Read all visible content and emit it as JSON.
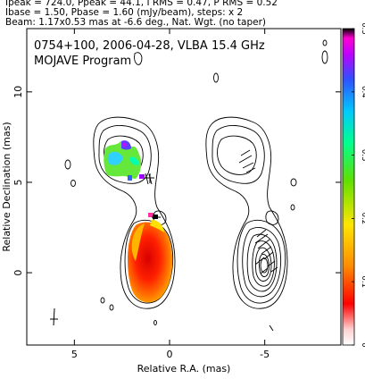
{
  "header": {
    "line1": "Ipeak = 724.0, Ppeak = 44.1, I RMS = 0.47, P RMS = 0.52",
    "line2": "Ibase = 1.50, Pbase = 1.60 (mJy/beam), steps: x 2",
    "line3": "Beam: 1.17x0.53 mas at -6.6 deg., Nat. Wgt. (no taper)"
  },
  "chart_data": {
    "type": "heatmap",
    "title": "0754+100, 2006-04-28, VLBA 15.4 GHz",
    "subtitle": "MOJAVE Program",
    "xlabel": "Relative R.A. (mas)",
    "ylabel": "Relative Declination (mas)",
    "xlim": [
      7.5,
      -9.0
    ],
    "ylim": [
      -4.0,
      13.5
    ],
    "x_ticks": [
      5,
      0,
      -5
    ],
    "x_tick_labels": [
      "5",
      "0",
      "-5"
    ],
    "y_ticks": [
      0,
      5,
      10
    ],
    "y_tick_labels": [
      "0",
      "5",
      "10"
    ],
    "colorbar": {
      "range": [
        0,
        0.5
      ],
      "ticks": [
        0,
        0.1,
        0.2,
        0.3,
        0.4,
        0.5
      ],
      "tick_labels": [
        "0",
        "0.1",
        "0.2",
        "0.3",
        "0.4",
        "0.5"
      ]
    },
    "left_panel_center": [
      0,
      0
    ],
    "right_panel_center": [
      -5.2,
      0
    ],
    "core": {
      "x": 0,
      "y": 0,
      "peak_mJy_per_beam": 724.0
    },
    "jet_component": {
      "x": 0.9,
      "y": 4.6
    },
    "fractional_polarization_regions": [
      {
        "x": -0.1,
        "y": 0.2,
        "value": 0.07
      },
      {
        "x": 0.55,
        "y": 0.6,
        "value": 0.12
      },
      {
        "x": 0.9,
        "y": 1.1,
        "value": 0.15
      },
      {
        "x": 0.6,
        "y": 1.8,
        "value": 0.18
      },
      {
        "x": 0.05,
        "y": 2.1,
        "value": 0.24
      },
      {
        "x": 1.3,
        "y": 4.4,
        "value": 0.3
      },
      {
        "x": 0.9,
        "y": 4.9,
        "value": 0.36
      },
      {
        "x": 1.2,
        "y": 5.4,
        "value": 0.44
      }
    ]
  }
}
